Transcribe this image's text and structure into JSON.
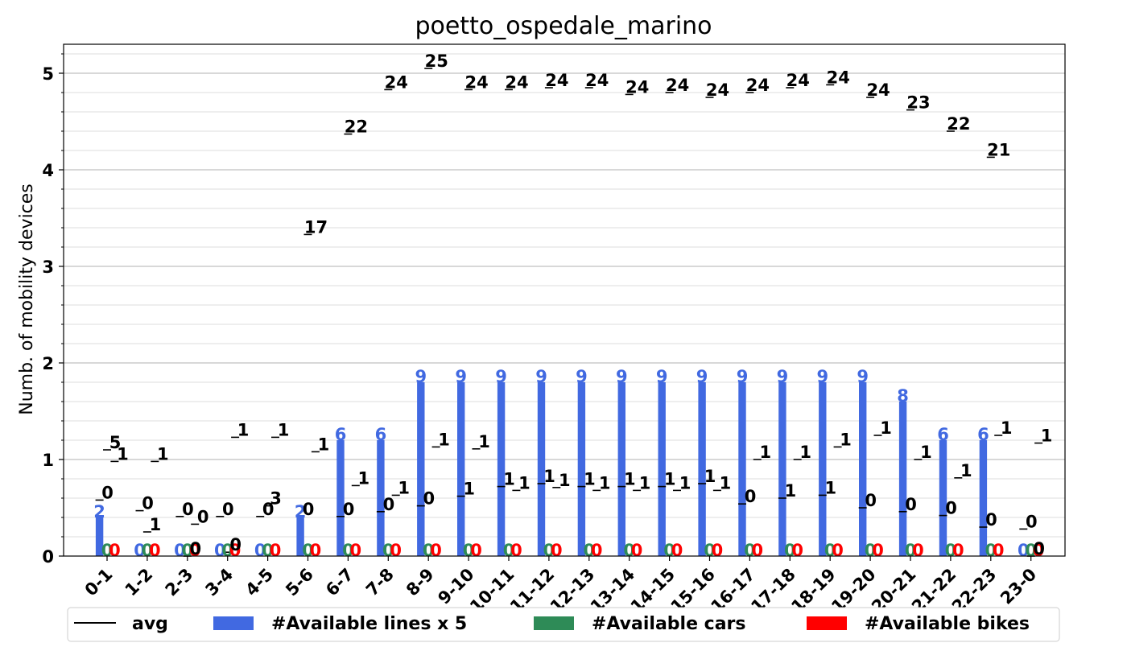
{
  "chart_data": {
    "type": "bar",
    "title": "poetto_ospedale_marino",
    "xlabel": "",
    "ylabel": "Numb. of mobility devices",
    "ylim": [
      0,
      5.3
    ],
    "y_ticks": [
      0,
      1,
      2,
      3,
      4,
      5
    ],
    "y_minor_step": 0.2,
    "grid": true,
    "legend_position": "bottom",
    "categories": [
      "0-1",
      "1-2",
      "2-3",
      "3-4",
      "4-5",
      "5-6",
      "6-7",
      "7-8",
      "8-9",
      "9-10",
      "10-11",
      "11-12",
      "12-13",
      "13-14",
      "14-15",
      "15-16",
      "16-17",
      "17-18",
      "18-19",
      "19-20",
      "20-21",
      "21-22",
      "22-23",
      "23-0"
    ],
    "series": [
      {
        "name": "#Available lines x 5",
        "color": "#4169e1",
        "values": [
          0.4,
          0,
          0,
          0,
          0,
          0.4,
          1.2,
          1.2,
          1.8,
          1.8,
          1.8,
          1.8,
          1.8,
          1.8,
          1.8,
          1.8,
          1.8,
          1.8,
          1.8,
          1.8,
          1.6,
          1.2,
          1.2,
          0
        ],
        "labels": [
          "2",
          "0",
          "0",
          "0",
          "0",
          "2",
          "6",
          "6",
          "9",
          "9",
          "9",
          "9",
          "9",
          "9",
          "9",
          "9",
          "9",
          "9",
          "9",
          "9",
          "8",
          "6",
          "6",
          "0"
        ]
      },
      {
        "name": "#Available cars",
        "color": "#2e8b57",
        "values": [
          0,
          0,
          0,
          0,
          0,
          0,
          0,
          0,
          0,
          0,
          0,
          0,
          0,
          0,
          0,
          0,
          0,
          0,
          0,
          0,
          0,
          0,
          0,
          0
        ],
        "labels": [
          "0",
          "0",
          "0",
          "0",
          "0",
          "0",
          "0",
          "0",
          "0",
          "0",
          "0",
          "0",
          "0",
          "0",
          "0",
          "0",
          "0",
          "0",
          "0",
          "0",
          "0",
          "0",
          "0",
          "0"
        ]
      },
      {
        "name": "#Available bikes",
        "color": "#ff0000",
        "values": [
          0,
          0,
          0,
          0,
          0,
          0,
          0,
          0,
          0,
          0,
          0,
          0,
          0,
          0,
          0,
          0,
          0,
          0,
          0,
          0,
          0,
          0,
          0,
          0
        ],
        "labels": [
          "0",
          "0",
          "0",
          "0",
          "0",
          "0",
          "0",
          "0",
          "0",
          "0",
          "0",
          "0",
          "0",
          "0",
          "0",
          "0",
          "0",
          "0",
          "0",
          "0",
          "0",
          "0",
          "0",
          "0"
        ]
      }
    ],
    "avg": {
      "name": "avg",
      "color": "#000000",
      "lines": [
        0.4,
        0,
        0,
        0,
        0,
        0.4,
        1.2,
        1.2,
        1.8,
        1.8,
        1.8,
        1.8,
        1.8,
        1.8,
        1.8,
        1.8,
        1.8,
        1.8,
        1.8,
        1.8,
        1.6,
        1.2,
        1.2,
        0
      ],
      "cars": [
        1.1,
        0.25,
        0,
        0.04,
        0.52,
        3.33,
        4.37,
        4.83,
        5.05,
        4.83,
        4.83,
        4.85,
        4.85,
        4.78,
        4.8,
        4.75,
        4.8,
        4.85,
        4.88,
        4.75,
        4.62,
        4.4,
        4.13,
        0
      ],
      "bikes": [
        0.98,
        0.98,
        0.33,
        1.23,
        1.23,
        1.08,
        0.73,
        0.63,
        1.13,
        1.11,
        0.68,
        0.71,
        0.68,
        0.68,
        0.68,
        0.68,
        1.0,
        1.0,
        1.13,
        1.25,
        1.0,
        0.81,
        1.25,
        1.17
      ],
      "lines_labels": [
        "0",
        "0",
        "0",
        "0",
        "0",
        "0",
        "0",
        "0",
        "0",
        "1",
        "1",
        "1",
        "1",
        "1",
        "1",
        "1",
        "0",
        "1",
        "1",
        "0",
        "0",
        "0",
        "0",
        "0"
      ],
      "cars_labels": [
        "5",
        "1",
        "0",
        "0",
        "3",
        "17",
        "22",
        "24",
        "25",
        "24",
        "24",
        "24",
        "24",
        "24",
        "24",
        "24",
        "24",
        "24",
        "24",
        "24",
        "23",
        "22",
        "21",
        "0"
      ],
      "bikes_labels": [
        "1",
        "1",
        "0",
        "1",
        "1",
        "1",
        "1",
        "1",
        "1",
        "1",
        "1",
        "1",
        "1",
        "1",
        "1",
        "1",
        "1",
        "1",
        "1",
        "1",
        "1",
        "1",
        "1",
        "1"
      ],
      "lines_label_values": [
        0.58,
        0.47,
        0.41,
        0.41,
        0.41,
        0.41,
        0.41,
        0.46,
        0.52,
        0.62,
        0.72,
        0.75,
        0.72,
        0.72,
        0.72,
        0.75,
        0.54,
        0.6,
        0.63,
        0.5,
        0.46,
        0.42,
        0.3,
        0.28
      ]
    }
  }
}
